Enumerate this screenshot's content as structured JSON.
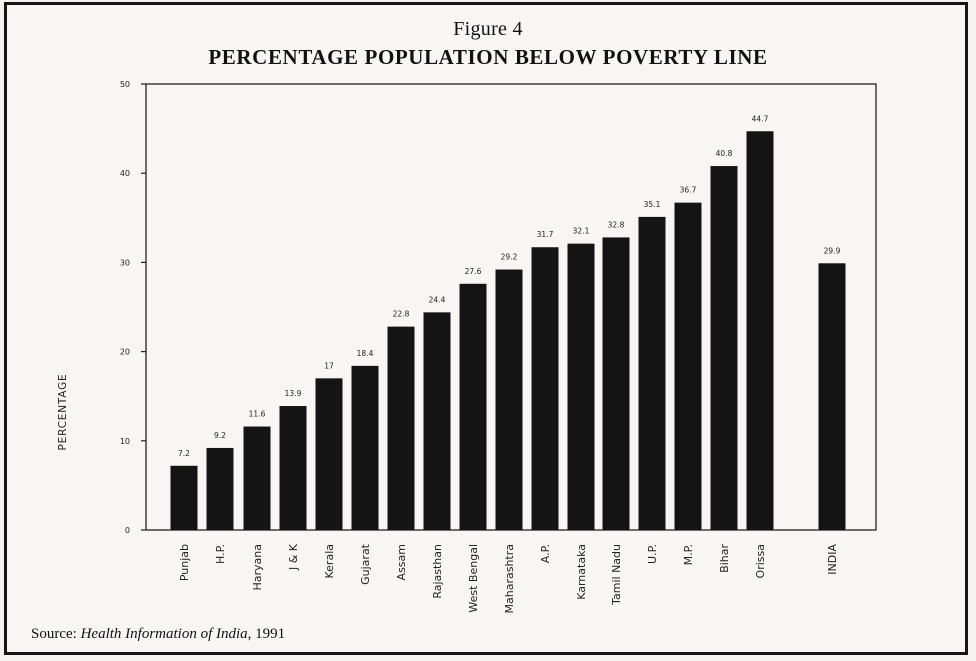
{
  "figure": {
    "number": "Figure 4",
    "title": "PERCENTAGE POPULATION BELOW POVERTY LINE"
  },
  "source": {
    "prefix": "Source: ",
    "title": "Health Information of India",
    "year": ", 1991"
  },
  "chart_data": {
    "type": "bar",
    "title": "PERCENTAGE POPULATION BELOW POVERTY LINE",
    "xlabel": "",
    "ylabel": "PERCENTAGE",
    "ylim": [
      0,
      50
    ],
    "yticks": [
      "0",
      "10",
      "20",
      "30",
      "40",
      "50"
    ],
    "grid": false,
    "categories": [
      "Punjab",
      "H.P.",
      "Haryana",
      "J & K",
      "Kerala",
      "Gujarat",
      "Assam",
      "Rajasthan",
      "West Bengal",
      "Maharashtra",
      "A.P.",
      "Karnataka",
      "Tamil Nadu",
      "U.P.",
      "M.P.",
      "Bihar",
      "Orissa",
      "INDIA"
    ],
    "values": [
      7.2,
      9.2,
      11.6,
      13.9,
      17,
      18.4,
      22.8,
      24.4,
      27.6,
      29.2,
      31.7,
      32.1,
      32.8,
      35.1,
      36.7,
      40.8,
      44.7,
      29.9
    ],
    "data_labels": [
      "7.2",
      "9.2",
      "11.6",
      "13.9",
      "17",
      "18.4",
      "22.8",
      "24.4",
      "27.6",
      "29.2",
      "31.7",
      "32.1",
      "32.8",
      "35.1",
      "36.7",
      "40.8",
      "44.7",
      "29.9"
    ],
    "colors": {
      "bar": "#141414",
      "axis": "#222222",
      "background": "#f7f6f3"
    }
  }
}
